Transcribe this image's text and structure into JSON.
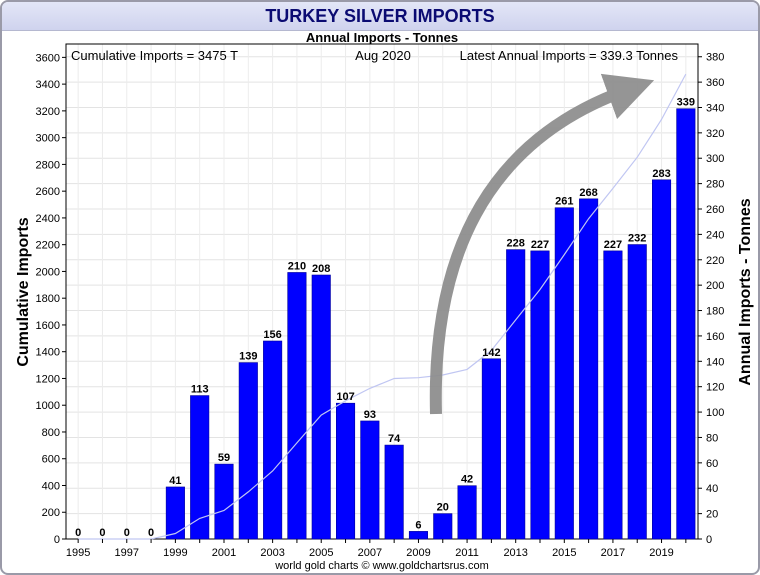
{
  "title": "TURKEY SILVER IMPORTS",
  "colors": {
    "bar": "#0000ff",
    "cumulative_line": "#c0c6f2",
    "arrow": "#8c8c8c",
    "title": "#0b0b72"
  },
  "chart_data": {
    "type": "bar",
    "subtitle": "Annual Imports - Tonnes",
    "annotations": {
      "cumulative": "Cumulative Imports = 3475 T",
      "date": "Aug 2020",
      "latest": "Latest Annual Imports = 339.3 Tonnes"
    },
    "ylabel_left": "Cumulative Imports",
    "ylabel_right": "Annual Imports - Tonnes",
    "ylim_left": [
      0,
      3700
    ],
    "ylim_right": [
      0,
      390
    ],
    "yticks_left": [
      0,
      200,
      400,
      600,
      800,
      1000,
      1200,
      1400,
      1600,
      1800,
      2000,
      2200,
      2400,
      2600,
      2800,
      3000,
      3200,
      3400,
      3600
    ],
    "yticks_right": [
      0,
      20,
      40,
      60,
      80,
      100,
      120,
      140,
      160,
      180,
      200,
      220,
      240,
      260,
      280,
      300,
      320,
      340,
      360,
      380
    ],
    "categories": [
      "1995",
      "1996",
      "1997",
      "1998",
      "1999",
      "2000",
      "2001",
      "2002",
      "2003",
      "2004",
      "2005",
      "2006",
      "2007",
      "2008",
      "2009",
      "2010",
      "2011",
      "2012",
      "2013",
      "2014",
      "2015",
      "2016",
      "2017",
      "2018",
      "2019",
      "2020"
    ],
    "xtick_labels": [
      "1995",
      "1997",
      "1999",
      "2001",
      "2003",
      "2005",
      "2007",
      "2009",
      "2011",
      "2013",
      "2015",
      "2017",
      "2019"
    ],
    "series": [
      {
        "axis": "right",
        "type": "bar",
        "values": [
          0,
          0,
          0,
          0,
          41,
          113,
          59,
          139,
          156,
          210,
          208,
          107,
          93,
          74,
          6,
          20,
          42,
          142,
          228,
          227,
          261,
          268,
          227,
          232,
          283,
          339
        ],
        "labels": [
          "0",
          "0",
          "0",
          "0",
          "41",
          "113",
          "59",
          "139",
          "156",
          "210",
          "208",
          "107",
          "93",
          "74",
          "6",
          "20",
          "42",
          "142",
          "228",
          "227",
          "261",
          "268",
          "227",
          "232",
          "283",
          "339"
        ]
      },
      {
        "axis": "left",
        "type": "line",
        "values": [
          0,
          0,
          0,
          0,
          41,
          154,
          213,
          352,
          508,
          718,
          926,
          1033,
          1126,
          1200,
          1206,
          1226,
          1268,
          1410,
          1638,
          1865,
          2126,
          2394,
          2621,
          2853,
          3136,
          3475
        ]
      }
    ],
    "grid": true,
    "source": "world gold charts © www.goldchartsrus.com"
  }
}
